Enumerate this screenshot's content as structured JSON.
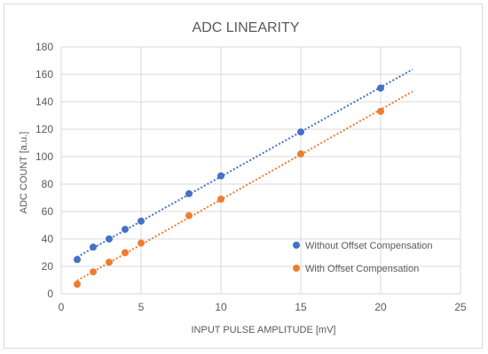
{
  "chart_data": {
    "type": "scatter",
    "title": "ADC LINEARITY",
    "xlabel": "INPUT PULSE AMPLITUDE [mV]",
    "ylabel": "ADC COUNT [a.u.]",
    "xlim": [
      0,
      25
    ],
    "ylim": [
      0,
      180
    ],
    "x_ticks": [
      0,
      5,
      10,
      15,
      20,
      25
    ],
    "y_ticks": [
      0,
      20,
      40,
      60,
      80,
      100,
      120,
      140,
      160,
      180
    ],
    "grid": true,
    "legend_position": "right",
    "series": [
      {
        "name": "Without Offset Compensation",
        "color": "#4472c4",
        "trendline": "linear",
        "trendline_x": [
          1,
          22
        ],
        "points": [
          {
            "x": 1,
            "y": 25
          },
          {
            "x": 2,
            "y": 34
          },
          {
            "x": 3,
            "y": 40
          },
          {
            "x": 4,
            "y": 47
          },
          {
            "x": 5,
            "y": 53
          },
          {
            "x": 8,
            "y": 73
          },
          {
            "x": 10,
            "y": 86
          },
          {
            "x": 15,
            "y": 118
          },
          {
            "x": 20,
            "y": 150
          }
        ]
      },
      {
        "name": "With Offset Compensation",
        "color": "#ed7d31",
        "trendline": "linear",
        "trendline_x": [
          1,
          22
        ],
        "points": [
          {
            "x": 1,
            "y": 7
          },
          {
            "x": 2,
            "y": 16
          },
          {
            "x": 3,
            "y": 23
          },
          {
            "x": 4,
            "y": 30
          },
          {
            "x": 5,
            "y": 37
          },
          {
            "x": 8,
            "y": 57
          },
          {
            "x": 10,
            "y": 69
          },
          {
            "x": 15,
            "y": 102
          },
          {
            "x": 20,
            "y": 133
          }
        ]
      }
    ]
  }
}
